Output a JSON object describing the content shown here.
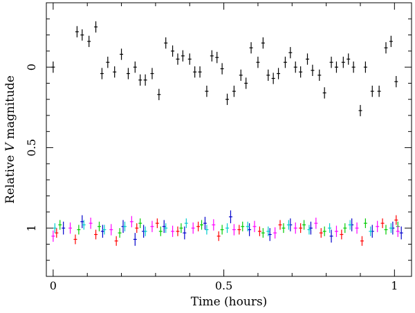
{
  "chart_data": {
    "type": "scatter",
    "title": "",
    "xlabel": "Time (hours)",
    "ylabel": {
      "prefix": "Relative ",
      "italic": "V",
      "suffix": " magnitude"
    },
    "xlim": [
      -0.02,
      1.05
    ],
    "ylim": [
      1.3,
      -0.4
    ],
    "y_inverted": true,
    "x_ticks": [
      0,
      0.5,
      1
    ],
    "x_tick_labels": [
      "0",
      "0.5",
      "1"
    ],
    "x_minor_step": 0.1,
    "y_ticks": [
      0,
      0.5,
      1
    ],
    "y_tick_labels": [
      "0",
      "0.5",
      "1"
    ],
    "y_minor_step": 0.1,
    "grid": false,
    "series": [
      {
        "color": "#000000",
        "yerr": 0.035,
        "x": [
          0.0,
          0.07,
          0.085,
          0.105,
          0.125,
          0.143,
          0.16,
          0.18,
          0.2,
          0.22,
          0.24,
          0.255,
          0.27,
          0.29,
          0.31,
          0.33,
          0.35,
          0.365,
          0.38,
          0.4,
          0.415,
          0.43,
          0.45,
          0.465,
          0.48,
          0.495,
          0.51,
          0.53,
          0.55,
          0.565,
          0.58,
          0.6,
          0.615,
          0.63,
          0.645,
          0.66,
          0.68,
          0.695,
          0.71,
          0.725,
          0.745,
          0.76,
          0.78,
          0.795,
          0.815,
          0.83,
          0.85,
          0.865,
          0.88,
          0.9,
          0.915,
          0.935,
          0.955,
          0.975,
          0.99,
          1.005
        ],
        "y": [
          0.0,
          -0.22,
          -0.2,
          -0.16,
          -0.25,
          0.04,
          -0.03,
          0.03,
          -0.08,
          0.04,
          0.0,
          0.08,
          0.08,
          0.04,
          0.17,
          -0.15,
          -0.1,
          -0.05,
          -0.07,
          -0.05,
          0.03,
          0.03,
          0.15,
          -0.07,
          -0.06,
          0.01,
          0.2,
          0.15,
          0.05,
          0.1,
          -0.12,
          -0.03,
          -0.15,
          0.05,
          0.07,
          0.04,
          -0.03,
          -0.09,
          0.0,
          0.03,
          -0.05,
          0.02,
          0.05,
          0.16,
          -0.03,
          0.0,
          -0.03,
          -0.05,
          0.0,
          0.27,
          0.0,
          0.15,
          0.15,
          -0.12,
          -0.16,
          0.09
        ]
      },
      {
        "color": "#ff0000",
        "yerr": 0.03,
        "x": [
          0.01,
          0.065,
          0.125,
          0.185,
          0.245,
          0.305,
          0.365,
          0.425,
          0.485,
          0.545,
          0.605,
          0.665,
          0.725,
          0.785,
          0.845,
          0.905,
          0.965,
          1.005
        ],
        "y": [
          1.03,
          1.07,
          1.04,
          1.08,
          1.0,
          0.97,
          1.02,
          0.99,
          1.05,
          1.01,
          1.02,
          0.98,
          1.0,
          1.03,
          1.04,
          1.08,
          0.97,
          0.95
        ]
      },
      {
        "color": "#00cc00",
        "yerr": 0.03,
        "x": [
          0.02,
          0.075,
          0.135,
          0.195,
          0.255,
          0.315,
          0.375,
          0.435,
          0.495,
          0.555,
          0.615,
          0.675,
          0.735,
          0.795,
          0.855,
          0.915,
          0.975,
          1.01
        ],
        "y": [
          0.98,
          1.01,
          0.99,
          1.03,
          0.97,
          1.02,
          1.0,
          0.98,
          1.01,
          0.99,
          1.03,
          1.0,
          0.98,
          1.02,
          1.0,
          0.97,
          1.01,
          0.99
        ]
      },
      {
        "color": "#0000cc",
        "yerr": 0.04,
        "x": [
          0.03,
          0.085,
          0.145,
          0.205,
          0.24,
          0.265,
          0.325,
          0.385,
          0.445,
          0.52,
          0.575,
          0.635,
          0.695,
          0.755,
          0.815,
          0.875,
          0.935,
          0.995,
          1.02
        ],
        "y": [
          1.0,
          0.96,
          1.02,
          0.99,
          1.07,
          1.02,
          0.99,
          1.03,
          0.97,
          0.93,
          1.01,
          1.04,
          0.98,
          1.0,
          1.05,
          0.98,
          1.02,
          1.0,
          1.03
        ]
      },
      {
        "color": "#00cccc",
        "yerr": 0.03,
        "x": [
          0.005,
          0.09,
          0.15,
          0.21,
          0.27,
          0.33,
          0.39,
          0.45,
          0.51,
          0.57,
          0.63,
          0.69,
          0.75,
          0.81,
          0.87,
          0.93,
          0.99
        ],
        "y": [
          1.0,
          0.98,
          1.01,
          0.99,
          1.02,
          1.0,
          0.97,
          1.01,
          1.0,
          0.99,
          1.02,
          0.98,
          1.01,
          1.0,
          0.98,
          1.02,
          1.0
        ]
      },
      {
        "color": "#ff00ff",
        "yerr": 0.035,
        "x": [
          0.0,
          0.05,
          0.11,
          0.17,
          0.23,
          0.29,
          0.35,
          0.41,
          0.47,
          0.53,
          0.59,
          0.65,
          0.71,
          0.77,
          0.83,
          0.89,
          0.95,
          1.01
        ],
        "y": [
          1.05,
          1.0,
          0.97,
          1.01,
          0.96,
          0.99,
          1.02,
          1.0,
          0.98,
          1.01,
          0.99,
          1.03,
          1.0,
          0.97,
          1.02,
          1.0,
          0.99,
          1.02
        ]
      }
    ]
  }
}
